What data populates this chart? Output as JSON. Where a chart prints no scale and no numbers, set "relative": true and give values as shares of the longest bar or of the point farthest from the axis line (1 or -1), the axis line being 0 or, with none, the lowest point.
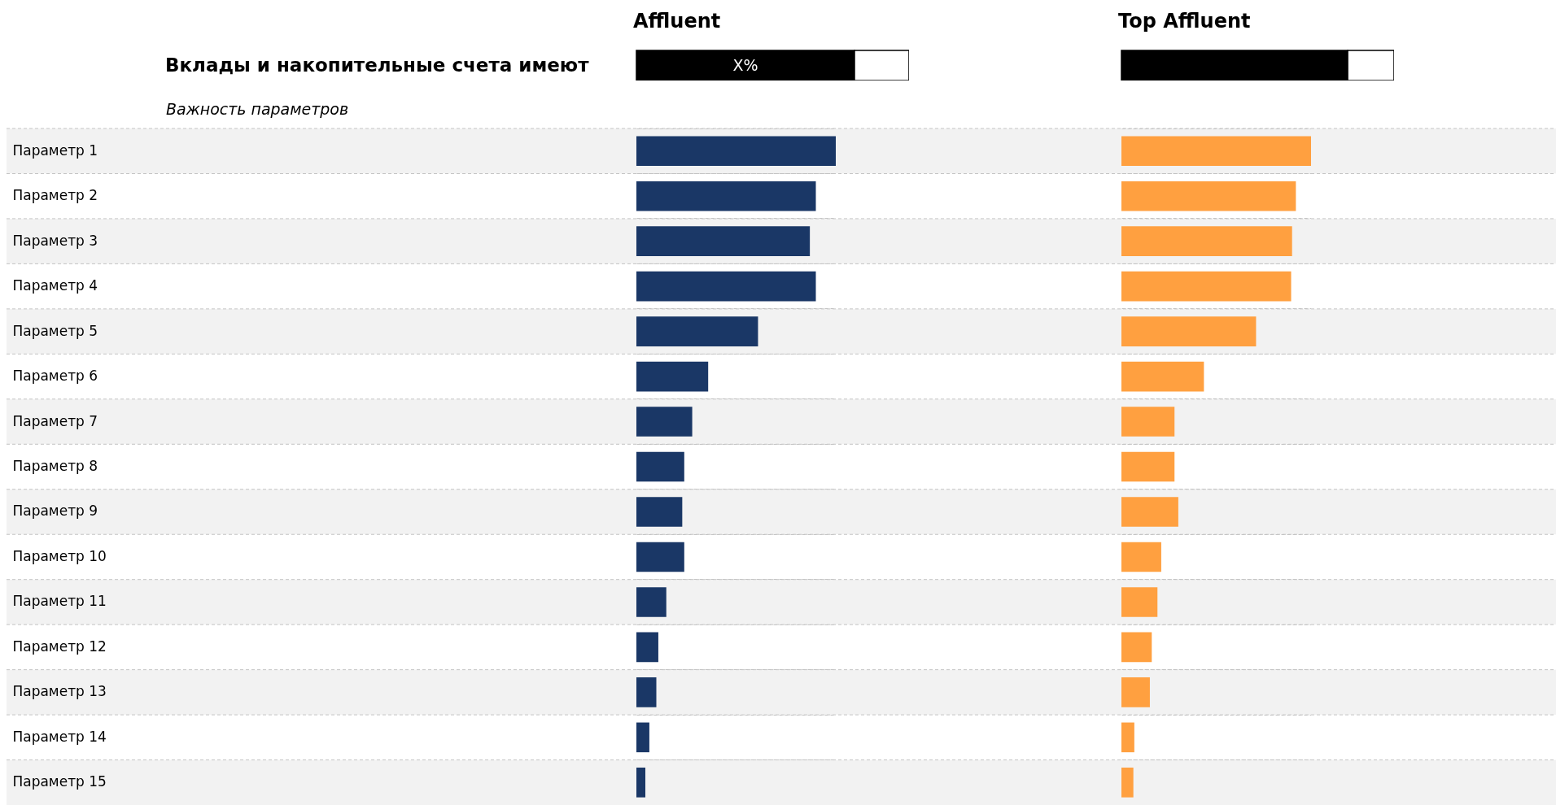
{
  "chart_data": [
    {
      "type": "bar",
      "orientation": "horizontal",
      "stacked": true,
      "relative": true,
      "title": "Affluent",
      "ylabel": "Вклады и накопительные счета имеют",
      "annotations": [
        "X%"
      ],
      "categories": [
        null
      ],
      "series": [
        {
          "color": "#000000",
          "values": [
            0.8
          ]
        },
        {
          "color": "#ffffff",
          "values": [
            0.2
          ]
        }
      ]
    },
    {
      "type": "bar",
      "orientation": "horizontal",
      "stacked": true,
      "relative": true,
      "title": "Top Affluent",
      "categories": [
        null
      ],
      "series": [
        {
          "color": "#000000",
          "values": [
            0.83
          ]
        },
        {
          "color": "#ffffff",
          "values": [
            0.17
          ]
        }
      ]
    },
    {
      "type": "bar",
      "orientation": "horizontal",
      "relative": true,
      "grid": true,
      "title": "Важность параметров",
      "categories": [
        "Параметр 1",
        "Параметр 2",
        "Параметр 3",
        "Параметр 4",
        "Параметр 5",
        "Параметр 6",
        "Параметр 7",
        "Параметр 8",
        "Параметр 9",
        "Параметр 10",
        "Параметр 11",
        "Параметр 12",
        "Параметр 13",
        "Параметр 14",
        "Параметр 15"
      ],
      "color": "#1a3766",
      "values": [
        1,
        0.9,
        0.87,
        0.9,
        0.61,
        0.36,
        0.28,
        0.24,
        0.23,
        0.24,
        0.15,
        0.11,
        0.1,
        0.065,
        0.045
      ]
    },
    {
      "type": "bar",
      "orientation": "horizontal",
      "relative": true,
      "grid": true,
      "categories": [
        null,
        null,
        null,
        null,
        null,
        null,
        null,
        null,
        null,
        null,
        null,
        null,
        null,
        null,
        null
      ],
      "color": "#ffa040",
      "values": [
        1,
        0.92,
        0.9,
        0.895,
        0.71,
        0.435,
        0.28,
        0.28,
        0.3,
        0.21,
        0.19,
        0.16,
        0.15,
        0.068,
        0.063
      ]
    }
  ]
}
